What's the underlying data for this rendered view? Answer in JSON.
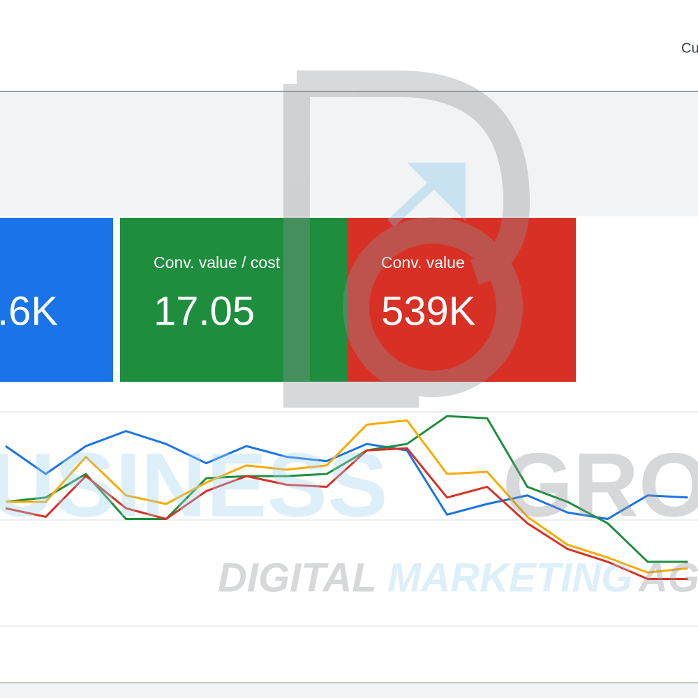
{
  "header": {
    "button": "Cu"
  },
  "cards": [
    {
      "label": null,
      "value": ".6K",
      "color": "#1a73e8"
    },
    {
      "label": "Conv. value / cost",
      "value": "17.05",
      "color": "#1e8e3e"
    },
    {
      "label": "Conv. value",
      "value": "539K",
      "color": "#d93025"
    }
  ],
  "watermark": {
    "word1": "USINESS",
    "word2": "GRO",
    "line1": "DIGITAL",
    "line2": "MARKETING",
    "line3": "AG"
  },
  "chart_data": {
    "type": "line",
    "categories": [
      null,
      null,
      null,
      null,
      null,
      null,
      null,
      null,
      null,
      null,
      null,
      null,
      null,
      null,
      null,
      null,
      null,
      null
    ],
    "ylim": [
      0,
      100
    ],
    "series": [
      {
        "color": "#1a73e8",
        "values": [
          84,
          71,
          84,
          91,
          85,
          76,
          84,
          79,
          77,
          85,
          82,
          52,
          57,
          61,
          53,
          50,
          61,
          60
        ]
      },
      {
        "color": "#1e8e3e",
        "values": [
          58,
          60,
          71,
          50,
          50,
          69,
          70,
          70,
          71,
          82,
          85,
          98,
          97,
          65,
          58,
          48,
          30,
          30
        ]
      },
      {
        "color": "#d93025",
        "values": [
          55,
          51,
          70,
          55,
          50,
          63,
          70,
          66,
          65,
          82,
          83,
          60,
          65,
          48,
          36,
          30,
          22,
          22
        ]
      },
      {
        "color": "#f9ab00",
        "values": [
          58,
          58,
          79,
          61,
          57,
          67,
          75,
          73,
          75,
          94,
          96,
          71,
          72,
          51,
          38,
          32,
          25,
          27
        ]
      }
    ]
  }
}
